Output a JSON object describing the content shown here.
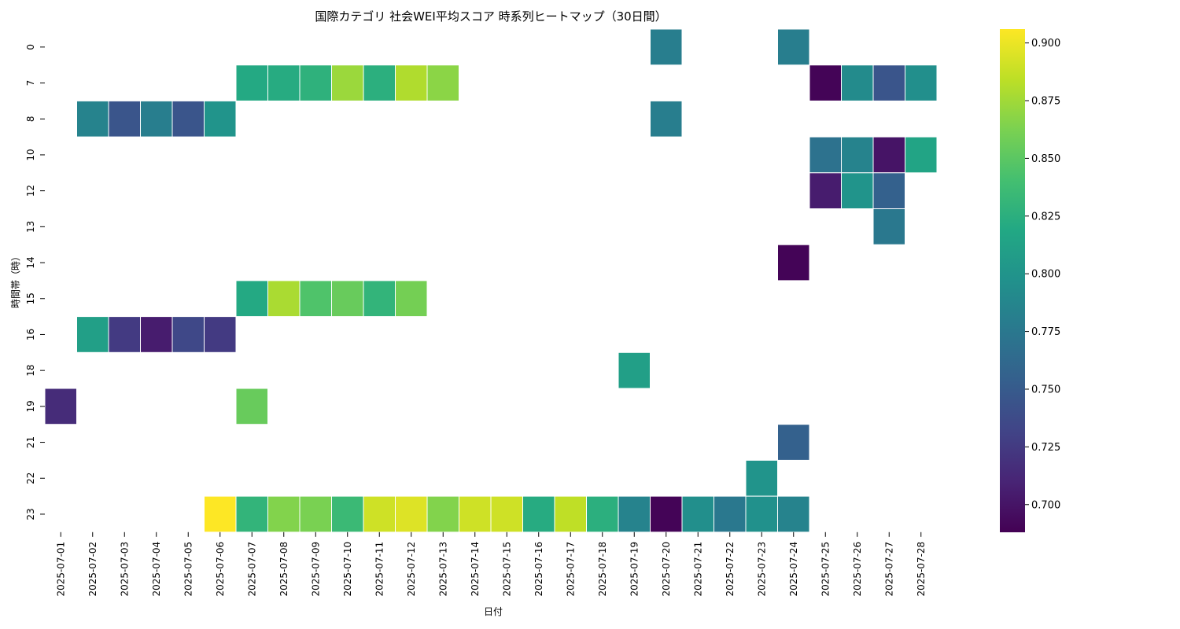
{
  "chart_data": {
    "type": "heatmap",
    "title": "国際カテゴリ 社会WEI平均スコア 時系列ヒートマップ（30日間）",
    "xlabel": "日付",
    "ylabel": "時間帯（時）",
    "colormap": "viridis",
    "color_range": [
      0.688,
      0.906
    ],
    "colorbar_ticks": [
      0.7,
      0.725,
      0.75,
      0.775,
      0.8,
      0.825,
      0.85,
      0.875,
      0.9
    ],
    "colorbar_tick_labels": [
      "0.700",
      "0.725",
      "0.750",
      "0.775",
      "0.800",
      "0.825",
      "0.850",
      "0.875",
      "0.900"
    ],
    "dates": [
      "2025-07-01",
      "2025-07-02",
      "2025-07-03",
      "2025-07-04",
      "2025-07-05",
      "2025-07-06",
      "2025-07-07",
      "2025-07-08",
      "2025-07-09",
      "2025-07-10",
      "2025-07-11",
      "2025-07-12",
      "2025-07-13",
      "2025-07-14",
      "2025-07-15",
      "2025-07-16",
      "2025-07-17",
      "2025-07-18",
      "2025-07-19",
      "2025-07-20",
      "2025-07-21",
      "2025-07-22",
      "2025-07-23",
      "2025-07-24",
      "2025-07-25",
      "2025-07-26",
      "2025-07-27",
      "2025-07-28"
    ],
    "hours": [
      "0",
      "7",
      "8",
      "10",
      "12",
      "13",
      "14",
      "15",
      "16",
      "18",
      "19",
      "21",
      "22",
      "23"
    ],
    "values": [
      [
        null,
        null,
        null,
        null,
        null,
        null,
        null,
        null,
        null,
        null,
        null,
        null,
        null,
        null,
        null,
        null,
        null,
        null,
        null,
        0.78,
        null,
        null,
        null,
        0.78,
        null,
        null,
        null,
        null
      ],
      [
        null,
        null,
        null,
        null,
        null,
        null,
        0.82,
        0.822,
        0.827,
        0.873,
        0.825,
        0.88,
        0.868,
        null,
        null,
        null,
        null,
        null,
        null,
        null,
        null,
        null,
        null,
        null,
        0.69,
        0.792,
        0.745,
        0.795
      ],
      [
        null,
        0.785,
        0.745,
        0.78,
        0.745,
        0.8,
        null,
        null,
        null,
        null,
        null,
        null,
        null,
        null,
        null,
        null,
        null,
        null,
        null,
        0.78,
        null,
        null,
        null,
        null,
        null,
        null,
        null,
        null
      ],
      [
        null,
        null,
        null,
        null,
        null,
        null,
        null,
        null,
        null,
        null,
        null,
        null,
        null,
        null,
        null,
        null,
        null,
        null,
        null,
        null,
        null,
        null,
        null,
        null,
        0.77,
        0.785,
        0.7,
        0.815
      ],
      [
        null,
        null,
        null,
        null,
        null,
        null,
        null,
        null,
        null,
        null,
        null,
        null,
        null,
        null,
        null,
        null,
        null,
        null,
        null,
        null,
        null,
        null,
        null,
        null,
        0.705,
        0.8,
        0.755,
        null
      ],
      [
        null,
        null,
        null,
        null,
        null,
        null,
        null,
        null,
        null,
        null,
        null,
        null,
        null,
        null,
        null,
        null,
        null,
        null,
        null,
        null,
        null,
        null,
        null,
        null,
        null,
        null,
        0.775,
        null
      ],
      [
        null,
        null,
        null,
        null,
        null,
        null,
        null,
        null,
        null,
        null,
        null,
        null,
        null,
        null,
        null,
        null,
        null,
        null,
        null,
        null,
        null,
        null,
        null,
        0.69,
        null,
        null,
        null,
        null
      ],
      [
        null,
        null,
        null,
        null,
        null,
        null,
        0.82,
        0.878,
        0.845,
        0.855,
        0.83,
        0.86,
        null,
        null,
        null,
        null,
        null,
        null,
        null,
        null,
        null,
        null,
        null,
        null,
        null,
        null,
        null,
        null
      ],
      [
        null,
        0.81,
        0.725,
        0.705,
        0.735,
        0.725,
        null,
        null,
        null,
        null,
        null,
        null,
        null,
        null,
        null,
        null,
        null,
        null,
        null,
        null,
        null,
        null,
        null,
        null,
        null,
        null,
        null,
        null
      ],
      [
        null,
        null,
        null,
        null,
        null,
        null,
        null,
        null,
        null,
        null,
        null,
        null,
        null,
        null,
        null,
        null,
        null,
        null,
        0.81,
        null,
        null,
        null,
        null,
        null,
        null,
        null,
        null,
        null
      ],
      [
        0.715,
        null,
        null,
        null,
        null,
        null,
        0.855,
        null,
        null,
        null,
        null,
        null,
        null,
        null,
        null,
        null,
        null,
        null,
        null,
        null,
        null,
        null,
        null,
        null,
        null,
        null,
        null,
        null
      ],
      [
        null,
        null,
        null,
        null,
        null,
        null,
        null,
        null,
        null,
        null,
        null,
        null,
        null,
        null,
        null,
        null,
        null,
        null,
        null,
        null,
        null,
        null,
        null,
        0.755,
        null,
        null,
        null,
        null
      ],
      [
        null,
        null,
        null,
        null,
        null,
        null,
        null,
        null,
        null,
        null,
        null,
        null,
        null,
        null,
        null,
        null,
        null,
        null,
        null,
        null,
        null,
        null,
        0.8,
        null,
        null,
        null,
        null,
        null
      ],
      [
        null,
        null,
        null,
        null,
        null,
        0.906,
        0.83,
        0.865,
        0.862,
        0.835,
        0.89,
        0.895,
        0.865,
        0.89,
        0.89,
        0.822,
        0.885,
        0.825,
        0.785,
        0.69,
        0.795,
        0.775,
        0.797,
        0.785,
        null,
        null,
        null,
        null
      ]
    ]
  }
}
